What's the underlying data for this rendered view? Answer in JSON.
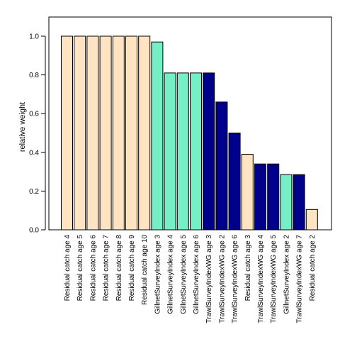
{
  "colors": {
    "residual_catch": "#ffe4c4",
    "gillnet_survey": "#76eec6",
    "trawl_survey": "#00008b",
    "outline": "#000000"
  },
  "chart_data": {
    "type": "bar",
    "title": "",
    "xlabel": "",
    "ylabel": "relative weight",
    "ylim": [
      0,
      1.1
    ],
    "yticks": [
      "0.0",
      "0.2",
      "0.4",
      "0.6",
      "0.8",
      "1.0"
    ],
    "grid": false,
    "legend": "none",
    "categories": [
      "Residual catch age 4",
      "Residual catch age 5",
      "Residual catch age 6",
      "Residual catch age 7",
      "Residual catch age 8",
      "Residual catch age 9",
      "Residual catch age 10",
      "GillnetSurveyIndex age 3",
      "GillnetSurveyIndex age 4",
      "GillnetSurveyIndex age 5",
      "GillnetSurveyIndex age 6",
      "TrawlSurveyIndexWG age 3",
      "TrawlSurveyIndexWG age 2",
      "TrawlSurveyIndexWG age 6",
      "Residual catch age 3",
      "TrawlSurveyIndexWG age 4",
      "TrawlSurveyIndexWG age 5",
      "GillnetSurveyIndex age 2",
      "TrawlSurveyIndexWG age 7",
      "Residual catch age 2"
    ],
    "values": [
      1.0,
      1.0,
      1.0,
      1.0,
      1.0,
      1.0,
      1.0,
      0.97,
      0.81,
      0.81,
      0.81,
      0.81,
      0.66,
      0.5,
      0.39,
      0.34,
      0.34,
      0.285,
      0.285,
      0.105
    ]
  }
}
